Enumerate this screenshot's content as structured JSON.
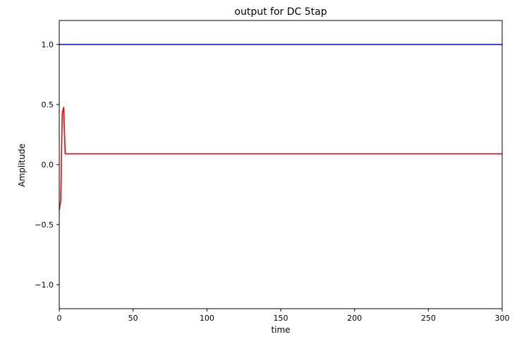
{
  "chart_data": {
    "type": "line",
    "title": "output for DC 5tap",
    "xlabel": "time",
    "ylabel": "Amplitude",
    "xlim": [
      0,
      300
    ],
    "ylim": [
      -1.2,
      1.2
    ],
    "xticks": [
      0,
      50,
      100,
      150,
      200,
      250,
      300
    ],
    "xtick_labels": [
      "0",
      "50",
      "100",
      "150",
      "200",
      "250",
      "300"
    ],
    "yticks": [
      1.0,
      0.5,
      0.0,
      -0.5,
      -1.0
    ],
    "ytick_labels": [
      "1.0",
      "0.5",
      "0.0",
      "−0.5",
      "−1.0"
    ],
    "grid": false,
    "series": [
      {
        "color": "#0000ff",
        "x": [
          0,
          300
        ],
        "y": [
          1.0,
          1.0
        ]
      },
      {
        "color": "#ff0000",
        "x": [
          0,
          1,
          2,
          3,
          4,
          300
        ],
        "y": [
          -0.38,
          -0.3,
          0.42,
          0.48,
          0.09,
          0.09
        ]
      }
    ]
  }
}
